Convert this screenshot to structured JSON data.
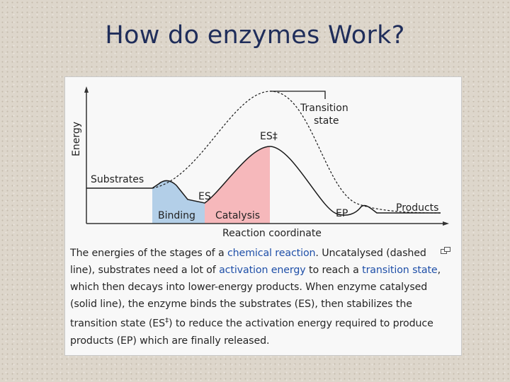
{
  "slide": {
    "title": "How do enzymes Work?"
  },
  "diagram": {
    "axis_y_label": "Energy",
    "axis_x_label": "Reaction coordinate",
    "labels": {
      "substrates": "Substrates",
      "transition_state_line1": "Transition",
      "transition_state_line2": "state",
      "es_dagger": "ES‡",
      "es": "ES",
      "ep": "EP",
      "products": "Products",
      "binding": "Binding",
      "catalysis": "Catalysis"
    },
    "colors": {
      "binding_region": "#b3cfe8",
      "catalysis_region": "#f6b8bb",
      "curve": "#1a1a1a",
      "axis": "#333333"
    },
    "icons": {
      "enlarge": "enlarge-icon"
    }
  },
  "caption": {
    "t1": "The energies of the stages of a ",
    "l1": "chemical reaction",
    "t2": ". Uncatalysed (dashed line), substrates need a lot of ",
    "l2": "activation energy",
    "t3": " to reach a ",
    "l3": "transition state",
    "t4": ", which then decays into lower-energy products. When enzyme catalysed (solid line), the enzyme binds the substrates (ES), then stabilizes the transition state (ES",
    "sup": "‡",
    "t5": ") to reduce the activation energy required to produce products (EP) which are finally released."
  }
}
